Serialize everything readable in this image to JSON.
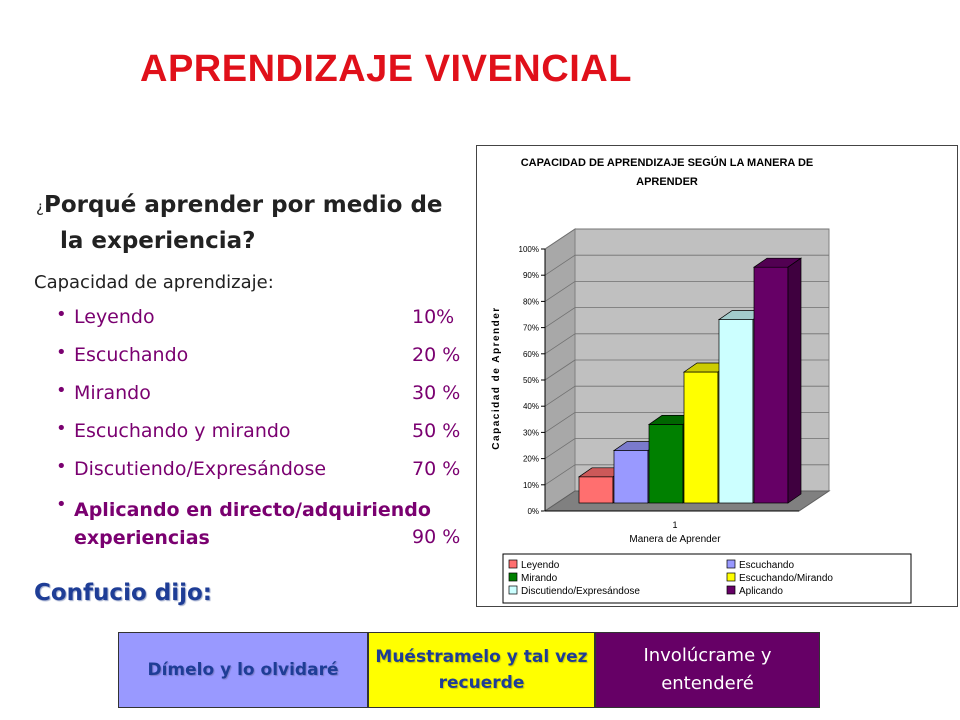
{
  "slide": {
    "title": "APRENDIZAJE VIVENCIAL",
    "question_mark_open": "¿",
    "question_line1": "Porqué aprender por medio de",
    "question_line2": "la experiencia?",
    "capacity_label": "Capacidad de aprendizaje:",
    "items": [
      {
        "label": "Leyendo",
        "percent": "10%"
      },
      {
        "label": "Escuchando",
        "percent": "20 %"
      },
      {
        "label": "Mirando",
        "percent": "30 %"
      },
      {
        "label": "Escuchando y mirando",
        "percent": "50 %"
      },
      {
        "label": "Discutiendo/Expresándose",
        "percent": "70 %"
      },
      {
        "label": "Aplicando en directo/adquiriendo experiencias",
        "percent": "90 %"
      }
    ],
    "confucio": "Confucio dijo:",
    "quotes": [
      "Dímelo y lo olvidaré",
      "Muéstramelo y tal vez recuerde",
      "Involúcrame y entenderé"
    ]
  },
  "chart_data": {
    "type": "bar",
    "title": "CAPACIDAD DE APRENDIZAJE SEGÚN LA MANERA DE APRENDER",
    "xlabel": "Manera de Aprender",
    "ylabel": "Capacidad de Aprender",
    "categories": [
      "1"
    ],
    "ylim": [
      0,
      100
    ],
    "yticks": [
      "0%",
      "10%",
      "20%",
      "30%",
      "40%",
      "50%",
      "60%",
      "70%",
      "80%",
      "90%",
      "100%"
    ],
    "grid": true,
    "legend_position": "bottom",
    "series": [
      {
        "name": "Leyendo",
        "values": [
          10
        ],
        "color": "#ff6f6f"
      },
      {
        "name": "Escuchando",
        "values": [
          20
        ],
        "color": "#9999ff"
      },
      {
        "name": "Mirando",
        "values": [
          30
        ],
        "color": "#008000"
      },
      {
        "name": "Escuchando/Mirando",
        "values": [
          50
        ],
        "color": "#ffff00"
      },
      {
        "name": "Discutiendo/Expresándose",
        "values": [
          70
        ],
        "color": "#ccffff"
      },
      {
        "name": "Aplicando",
        "values": [
          90
        ],
        "color": "#660066"
      }
    ]
  }
}
